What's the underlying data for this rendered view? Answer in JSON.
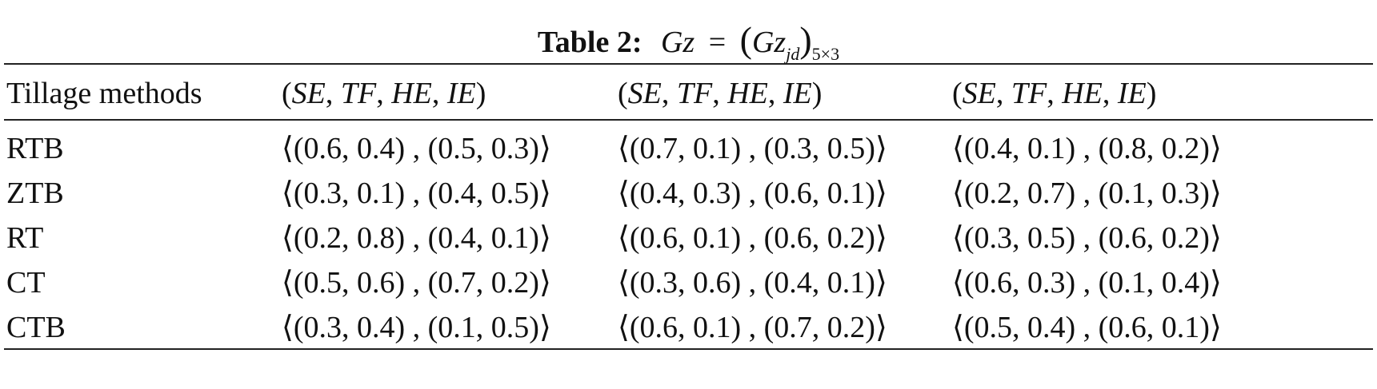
{
  "caption": {
    "label": "Table 2:",
    "formula": {
      "lhs": "Gz",
      "eq": "=",
      "open": "(",
      "base": "Gz",
      "index": "jd",
      "close": ")",
      "size": "5×3"
    }
  },
  "table": {
    "header": [
      "Tillage methods",
      "(SE, TF, HE, IE)",
      "(SE, TF, HE, IE)",
      "(SE, TF, HE, IE)"
    ],
    "rows": [
      [
        "RTB",
        "⟨(0.6, 0.4) , (0.5, 0.3)⟩",
        "⟨(0.7, 0.1) , (0.3, 0.5)⟩",
        "⟨(0.4, 0.1) , (0.8, 0.2)⟩"
      ],
      [
        "ZTB",
        "⟨(0.3, 0.1) , (0.4, 0.5)⟩",
        "⟨(0.4, 0.3) , (0.6, 0.1)⟩",
        "⟨(0.2, 0.7) , (0.1, 0.3)⟩"
      ],
      [
        "RT",
        "⟨(0.2, 0.8) , (0.4, 0.1)⟩",
        "⟨(0.6, 0.1) , (0.6, 0.2)⟩",
        "⟨(0.3, 0.5) , (0.6, 0.2)⟩"
      ],
      [
        "CT",
        "⟨(0.5, 0.6) , (0.7, 0.2)⟩",
        "⟨(0.3, 0.6) , (0.4, 0.1)⟩",
        "⟨(0.6, 0.3) , (0.1, 0.4)⟩"
      ],
      [
        "CTB",
        "⟨(0.3, 0.4) , (0.1, 0.5)⟩",
        "⟨(0.6, 0.1) , (0.7, 0.2)⟩",
        "⟨(0.5, 0.4) , (0.6, 0.1)⟩"
      ]
    ]
  }
}
